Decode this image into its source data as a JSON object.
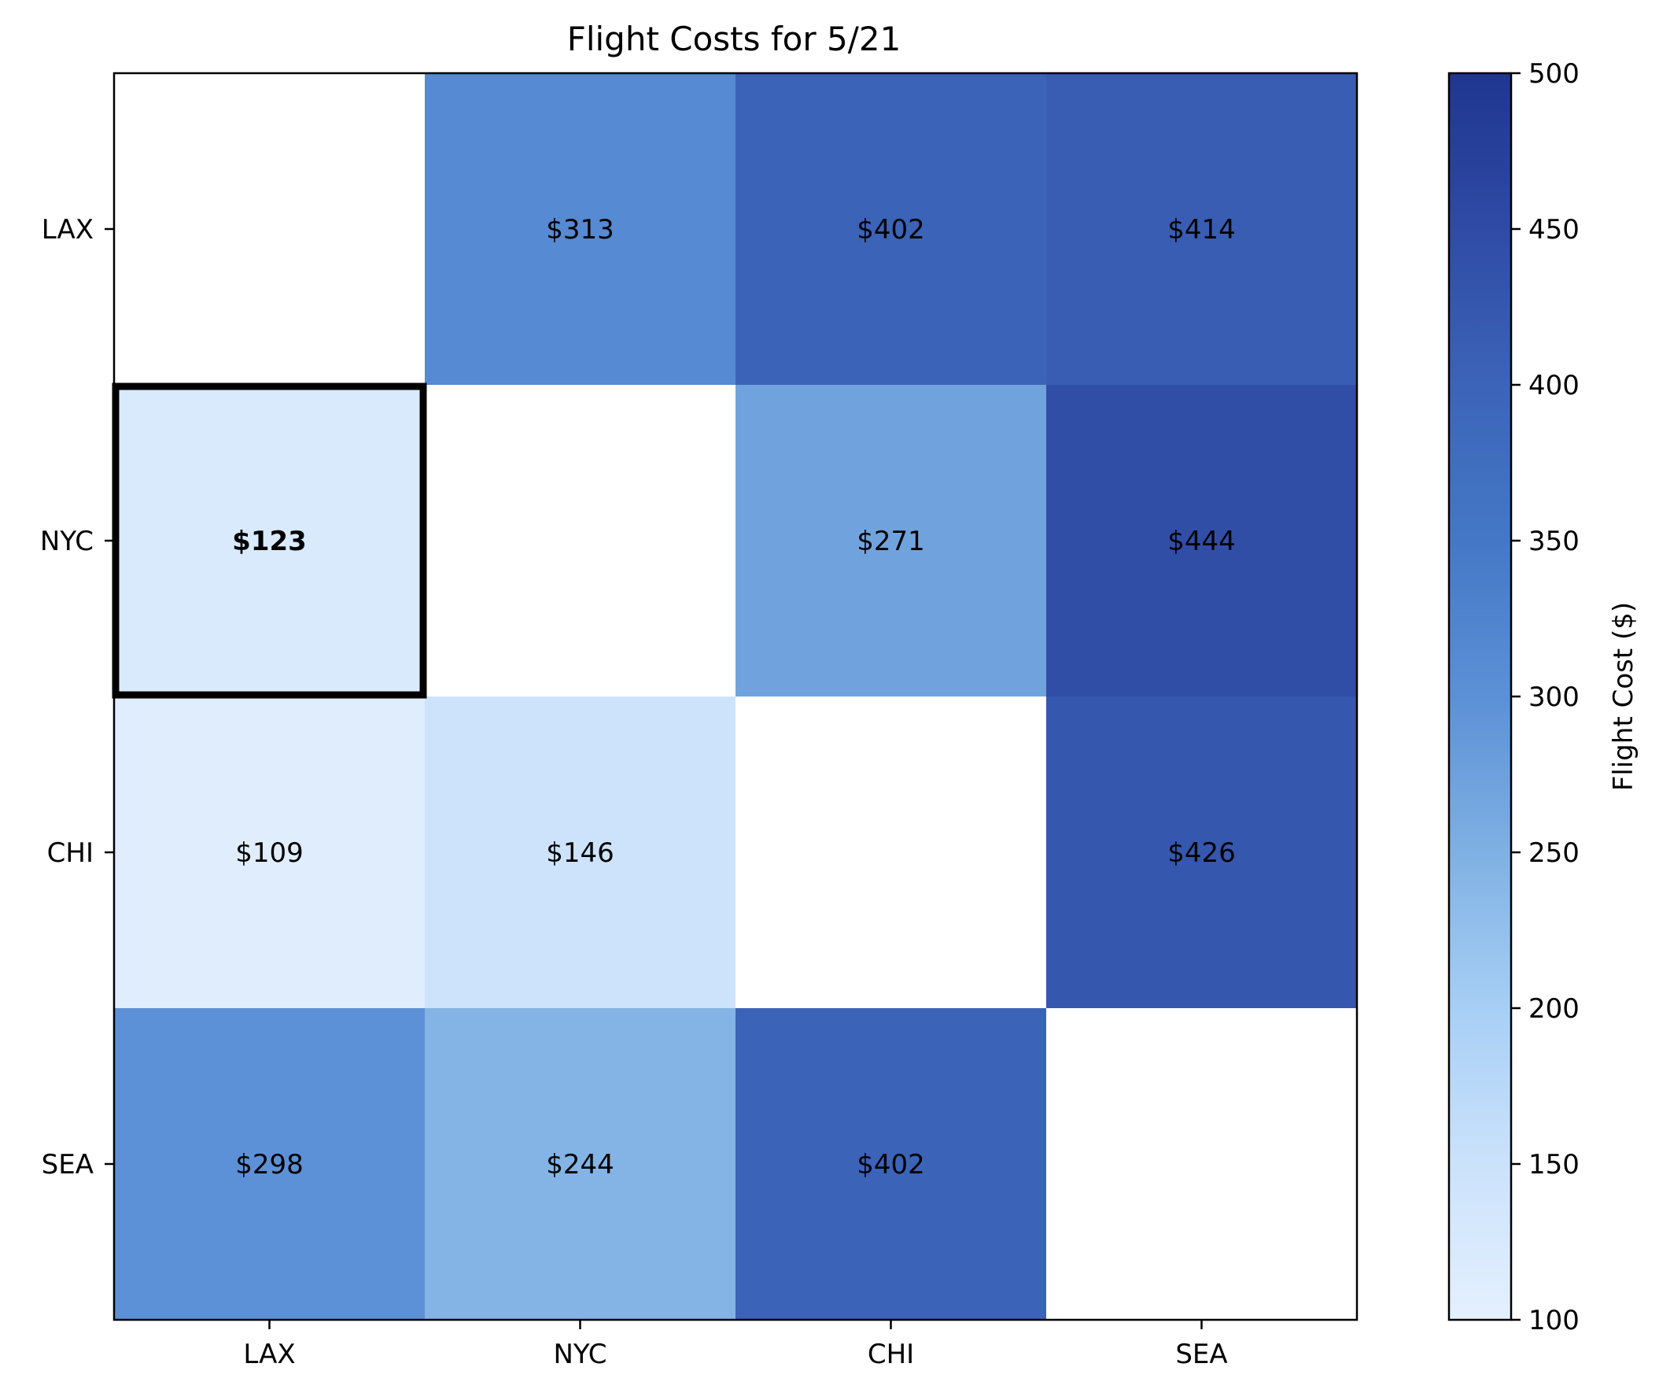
{
  "chart_data": {
    "type": "heatmap",
    "title": "Flight Costs for 5/21",
    "x_categories": [
      "LAX",
      "NYC",
      "CHI",
      "SEA"
    ],
    "y_categories": [
      "LAX",
      "NYC",
      "CHI",
      "SEA"
    ],
    "values": [
      [
        null,
        313,
        402,
        414
      ],
      [
        123,
        null,
        271,
        444
      ],
      [
        109,
        146,
        null,
        426
      ],
      [
        298,
        244,
        402,
        null
      ]
    ],
    "cell_labels": [
      [
        "",
        "$313",
        "$402",
        "$414"
      ],
      [
        "$123",
        "",
        "$271",
        "$444"
      ],
      [
        "$109",
        "$146",
        "",
        "$426"
      ],
      [
        "$298",
        "$244",
        "$402",
        ""
      ]
    ],
    "highlighted_cell": {
      "row": "NYC",
      "col": "LAX",
      "value": 123
    },
    "colorbar": {
      "label": "Flight Cost ($)",
      "range": [
        100,
        500
      ],
      "ticks": [
        "100",
        "150",
        "200",
        "250",
        "300",
        "350",
        "400",
        "450",
        "500"
      ],
      "colors": [
        "#e4f0fe",
        "#cbe2fb",
        "#a7cff5",
        "#7fb0e3",
        "#5c90d6",
        "#4478c6",
        "#3c64b8",
        "#2f4ba5",
        "#1f3690"
      ]
    }
  }
}
